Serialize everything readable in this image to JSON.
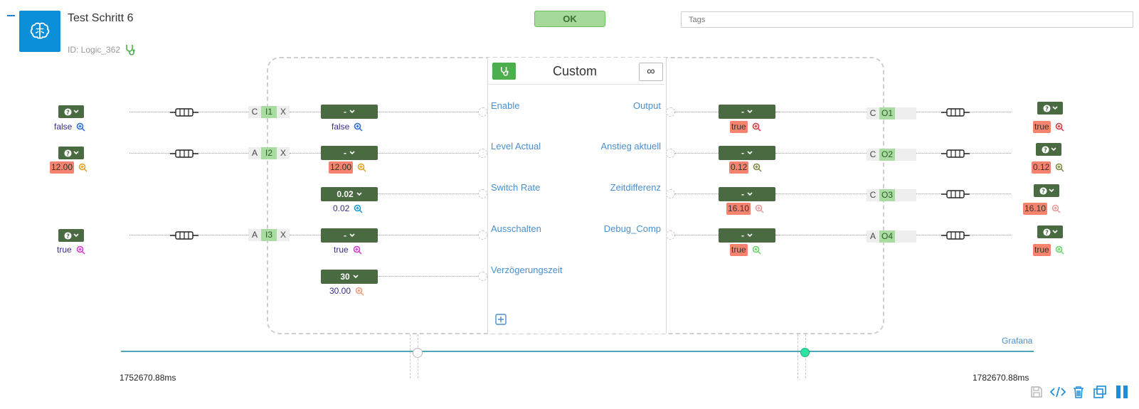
{
  "header": {
    "title": "Test Schritt 6",
    "id_label": "ID: Logic_362",
    "ok_label": "OK",
    "tags_placeholder": "Tags"
  },
  "block": {
    "title": "Custom",
    "infinity_label": "∞",
    "inputs": [
      {
        "label": "Enable"
      },
      {
        "label": "Level Actual"
      },
      {
        "label": "Switch Rate"
      },
      {
        "label": "Ausschalten"
      },
      {
        "label": "Verzögerungszeit"
      }
    ],
    "outputs": [
      {
        "label": "Output"
      },
      {
        "label": "Anstieg aktuell"
      },
      {
        "label": "Zeitdifferenz"
      },
      {
        "label": "Debug_Comp"
      }
    ]
  },
  "left_sources": [
    {
      "value": "false",
      "highlight": false,
      "icon_color": "#2f6fd6"
    },
    {
      "value": "12.00",
      "highlight": true,
      "icon_color": "#e0a020"
    },
    {
      "value": "true",
      "highlight": false,
      "icon_color": "#d63ad6"
    }
  ],
  "input_connectors": [
    {
      "type": "C",
      "id": "I1",
      "x": "X"
    },
    {
      "type": "A",
      "id": "I2",
      "x": "X"
    },
    {
      "type": "A",
      "id": "I3",
      "x": "X"
    }
  ],
  "input_controls": [
    {
      "dropdown": "-",
      "value": "false",
      "highlight": false,
      "icon_color": "#2f6fd6"
    },
    {
      "dropdown": "-",
      "value": "12.00",
      "highlight": true,
      "icon_color": "#e0a020"
    },
    {
      "dropdown": "0.02",
      "value": "0.02",
      "highlight": false,
      "icon_color": "#1a9ad6"
    },
    {
      "dropdown": "-",
      "value": "true",
      "highlight": false,
      "icon_color": "#d63ad6"
    },
    {
      "dropdown": "30",
      "value": "30.00",
      "highlight": false,
      "icon_color": "#e8a080"
    }
  ],
  "output_controls": [
    {
      "dropdown": "-",
      "value": "true",
      "icon_color": "#d04040"
    },
    {
      "dropdown": "-",
      "value": "0.12",
      "icon_color": "#7a8a40"
    },
    {
      "dropdown": "-",
      "value": "16.10",
      "icon_color": "#e89a9a"
    },
    {
      "dropdown": "-",
      "value": "true",
      "icon_color": "#6ad46a"
    }
  ],
  "output_connectors": [
    {
      "type": "C",
      "id": "O1"
    },
    {
      "type": "C",
      "id": "O2"
    },
    {
      "type": "C",
      "id": "O3"
    },
    {
      "type": "A",
      "id": "O4"
    }
  ],
  "right_targets": [
    {
      "value": "true",
      "icon_color": "#d04040"
    },
    {
      "value": "0.12",
      "icon_color": "#7a8a40"
    },
    {
      "value": "16.10",
      "icon_color": "#e89a9a"
    },
    {
      "value": "true",
      "icon_color": "#6ad46a"
    }
  ],
  "timeline": {
    "grafana_label": "Grafana",
    "start": "1752670.88ms",
    "end": "1782670.88ms"
  },
  "toolbar": {
    "icons": [
      "save-icon",
      "code-icon",
      "trash-icon",
      "copy-icon",
      "pause-icon"
    ]
  }
}
